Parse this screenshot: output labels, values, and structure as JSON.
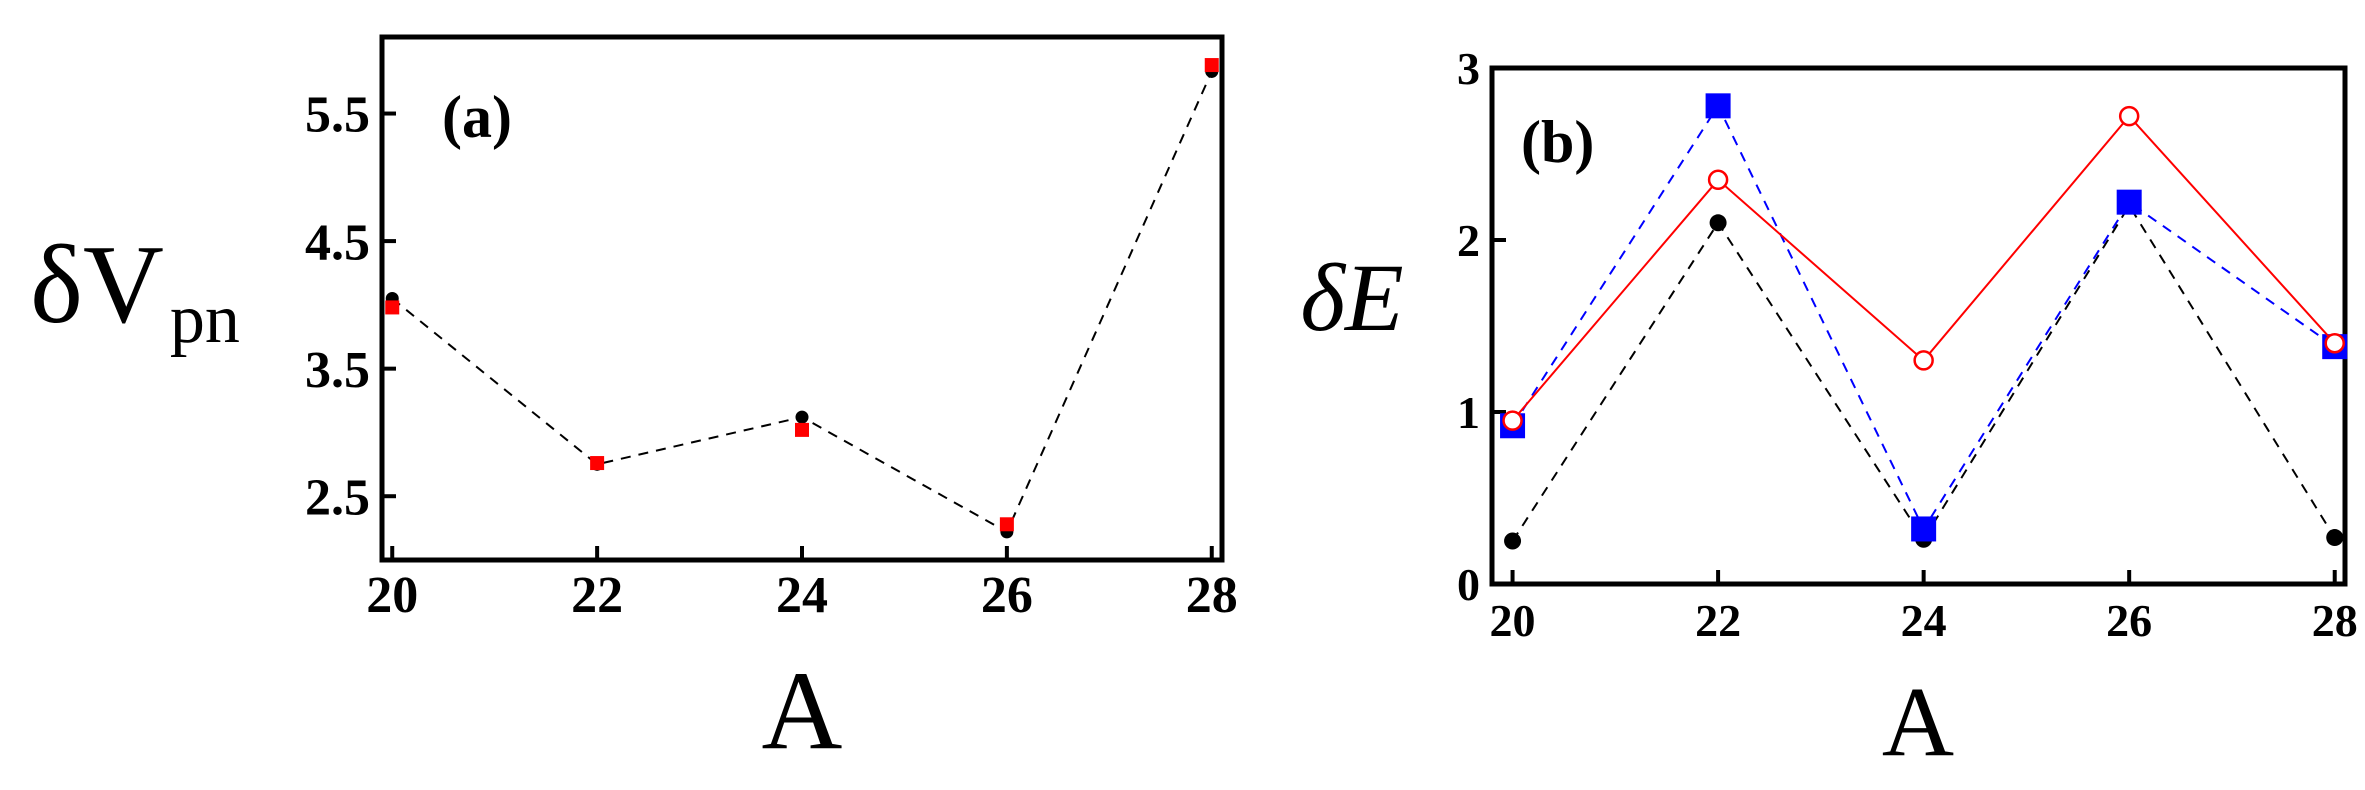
{
  "chart_data": [
    {
      "type": "scatter",
      "panel_label": "(a)",
      "xlabel": "A",
      "ylabel_main": "δV",
      "ylabel_sub": "pn",
      "xlim": [
        19.9,
        28.1
      ],
      "ylim": [
        2.0,
        6.1
      ],
      "x_ticks": [
        20,
        22,
        24,
        26,
        28
      ],
      "x_tick_labels": [
        "20",
        "22",
        "24",
        "26",
        "28"
      ],
      "y_ticks": [
        2.5,
        3.5,
        4.5,
        5.5
      ],
      "y_tick_labels": [
        "2.5",
        "3.5",
        "4.5",
        "5.5"
      ],
      "grid": false,
      "legend": "none",
      "series": [
        {
          "color": "#000000",
          "marker": "circle-filled",
          "line": "dashed",
          "line_color": "#000000",
          "x": [
            20,
            22,
            24,
            26,
            28
          ],
          "y": [
            4.05,
            2.75,
            3.12,
            2.22,
            5.83
          ]
        },
        {
          "color": "#ff0000",
          "marker": "square-filled",
          "line": "none",
          "x": [
            20,
            22,
            24,
            26,
            28
          ],
          "y": [
            3.98,
            2.76,
            3.02,
            2.28,
            5.88
          ]
        }
      ]
    },
    {
      "type": "line",
      "panel_label": "(b)",
      "xlabel": "A",
      "ylabel_main": "δE",
      "xlim": [
        19.8,
        28.1
      ],
      "ylim": [
        0,
        3
      ],
      "x_ticks": [
        20,
        22,
        24,
        26,
        28
      ],
      "x_tick_labels": [
        "20",
        "22",
        "24",
        "26",
        "28"
      ],
      "y_ticks": [
        0,
        1,
        2,
        3
      ],
      "y_tick_labels": [
        "0",
        "1",
        "2",
        "3"
      ],
      "grid": false,
      "legend": "none",
      "series": [
        {
          "color": "#000000",
          "marker": "circle-filled",
          "line": "dashed",
          "x": [
            20,
            22,
            24,
            26,
            28
          ],
          "y": [
            0.25,
            2.1,
            0.26,
            2.2,
            0.27
          ]
        },
        {
          "color": "#0000ff",
          "marker": "square-filled",
          "line": "dashed",
          "x": [
            20,
            22,
            24,
            26,
            28
          ],
          "y": [
            0.92,
            2.78,
            0.32,
            2.22,
            1.38
          ]
        },
        {
          "color": "#ff0000",
          "marker": "circle-open",
          "line": "solid",
          "x": [
            20,
            22,
            24,
            26,
            28
          ],
          "y": [
            0.95,
            2.35,
            1.3,
            2.72,
            1.4
          ]
        }
      ]
    }
  ]
}
